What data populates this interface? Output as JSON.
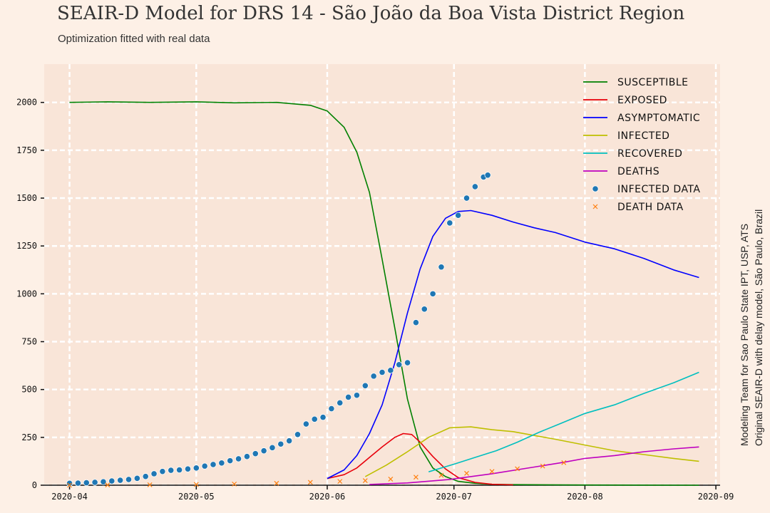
{
  "title": "SEAIR-D Model for DRS 14 - São João da Boa Vista District Region",
  "subtitle": "Optimization fitted with real data",
  "side_note_1": "Modeling Team for Sao Paulo State IPT, USP, ATS",
  "side_note_2": "Original SEAIR-D with delay model, São Paulo, Brazil",
  "colors": {
    "background": "#fdf0e6",
    "plot_area": "#f9e5d8",
    "grid": "#ffffff",
    "susceptible": "#008000",
    "exposed": "#e8000b",
    "asymptomatic": "#0000ff",
    "infected": "#bfbf00",
    "recovered": "#00bfbf",
    "deaths": "#bf00bf",
    "infected_data": "#1f77b4",
    "death_data": "#ff7f0e"
  },
  "chart_data": {
    "type": "line",
    "title": "SEAIR-D Model for DRS 14 - São João da Boa Vista District Region",
    "subtitle": "Optimization fitted with real data",
    "xlim": [
      "2020-03-26",
      "2020-09-02"
    ],
    "ylim": [
      0,
      2200
    ],
    "x_ticks": [
      "2020-04",
      "2020-05",
      "2020-06",
      "2020-07",
      "2020-08",
      "2020-09"
    ],
    "y_ticks": [
      0,
      250,
      500,
      750,
      1000,
      1250,
      1500,
      1750,
      2000
    ],
    "grid": true,
    "legend": "top-right",
    "series": [
      {
        "name": "Susceptible",
        "kind": "line",
        "color": "#008000",
        "x": [
          "2020-04-01",
          "2020-04-10",
          "2020-04-20",
          "2020-05-01",
          "2020-05-10",
          "2020-05-20",
          "2020-05-28",
          "2020-06-01",
          "2020-06-05",
          "2020-06-08",
          "2020-06-11",
          "2020-06-14",
          "2020-06-17",
          "2020-06-20",
          "2020-06-23",
          "2020-06-26",
          "2020-06-29",
          "2020-07-02",
          "2020-07-06",
          "2020-07-10",
          "2020-07-15",
          "2020-08-01",
          "2020-08-28"
        ],
        "y": [
          2000,
          2003,
          2000,
          2003,
          1998,
          2000,
          1985,
          1955,
          1870,
          1740,
          1530,
          1180,
          820,
          450,
          200,
          90,
          45,
          20,
          10,
          5,
          3,
          1,
          0
        ]
      },
      {
        "name": "Exposed",
        "kind": "line",
        "color": "#e8000b",
        "x": [
          "2020-06-01",
          "2020-06-05",
          "2020-06-08",
          "2020-06-11",
          "2020-06-14",
          "2020-06-17",
          "2020-06-19",
          "2020-06-21",
          "2020-06-23",
          "2020-06-26",
          "2020-06-29",
          "2020-07-02",
          "2020-07-06",
          "2020-07-10",
          "2020-07-15"
        ],
        "y": [
          35,
          55,
          90,
          145,
          200,
          250,
          270,
          265,
          225,
          150,
          85,
          40,
          15,
          5,
          2
        ]
      },
      {
        "name": "Asymptomatic",
        "kind": "line",
        "color": "#0000ff",
        "x": [
          "2020-06-01",
          "2020-06-05",
          "2020-06-08",
          "2020-06-11",
          "2020-06-14",
          "2020-06-17",
          "2020-06-20",
          "2020-06-23",
          "2020-06-26",
          "2020-06-29",
          "2020-07-02",
          "2020-07-05",
          "2020-07-10",
          "2020-07-15",
          "2020-07-20",
          "2020-07-25",
          "2020-08-01",
          "2020-08-08",
          "2020-08-15",
          "2020-08-22",
          "2020-08-28"
        ],
        "y": [
          35,
          80,
          155,
          270,
          420,
          640,
          900,
          1130,
          1300,
          1395,
          1430,
          1435,
          1410,
          1375,
          1345,
          1320,
          1270,
          1235,
          1185,
          1125,
          1085
        ]
      },
      {
        "name": "Infected",
        "kind": "line",
        "color": "#bfbf00",
        "x": [
          "2020-06-10",
          "2020-06-15",
          "2020-06-20",
          "2020-06-25",
          "2020-06-30",
          "2020-07-05",
          "2020-07-10",
          "2020-07-15",
          "2020-07-20",
          "2020-07-25",
          "2020-08-01",
          "2020-08-08",
          "2020-08-15",
          "2020-08-22",
          "2020-08-28"
        ],
        "y": [
          45,
          105,
          175,
          250,
          300,
          305,
          290,
          280,
          260,
          240,
          210,
          180,
          160,
          140,
          125
        ]
      },
      {
        "name": "Recovered",
        "kind": "line",
        "color": "#00bfbf",
        "x": [
          "2020-06-25",
          "2020-07-01",
          "2020-07-06",
          "2020-07-11",
          "2020-07-16",
          "2020-07-21",
          "2020-07-26",
          "2020-08-01",
          "2020-08-08",
          "2020-08-15",
          "2020-08-22",
          "2020-08-28"
        ],
        "y": [
          70,
          110,
          145,
          180,
          225,
          275,
          320,
          375,
          420,
          480,
          535,
          590
        ]
      },
      {
        "name": "Deaths",
        "kind": "line",
        "color": "#bf00bf",
        "x": [
          "2020-06-11",
          "2020-06-20",
          "2020-06-30",
          "2020-07-10",
          "2020-07-20",
          "2020-07-27",
          "2020-08-01",
          "2020-08-08",
          "2020-08-15",
          "2020-08-22",
          "2020-08-28"
        ],
        "y": [
          4,
          12,
          30,
          60,
          95,
          120,
          140,
          155,
          175,
          190,
          200
        ]
      },
      {
        "name": "Infected data",
        "kind": "scatter",
        "marker": "circle",
        "color": "#1f77b4",
        "x": [
          "2020-04-01",
          "2020-04-03",
          "2020-04-05",
          "2020-04-07",
          "2020-04-09",
          "2020-04-11",
          "2020-04-13",
          "2020-04-15",
          "2020-04-17",
          "2020-04-19",
          "2020-04-21",
          "2020-04-23",
          "2020-04-25",
          "2020-04-27",
          "2020-04-29",
          "2020-05-01",
          "2020-05-03",
          "2020-05-05",
          "2020-05-07",
          "2020-05-09",
          "2020-05-11",
          "2020-05-13",
          "2020-05-15",
          "2020-05-17",
          "2020-05-19",
          "2020-05-21",
          "2020-05-23",
          "2020-05-25",
          "2020-05-27",
          "2020-05-29",
          "2020-05-31",
          "2020-06-02",
          "2020-06-04",
          "2020-06-06",
          "2020-06-08",
          "2020-06-10",
          "2020-06-12",
          "2020-06-14",
          "2020-06-16",
          "2020-06-18",
          "2020-06-20",
          "2020-06-22",
          "2020-06-24",
          "2020-06-26",
          "2020-06-28",
          "2020-06-30",
          "2020-07-02",
          "2020-07-04",
          "2020-07-06",
          "2020-07-08",
          "2020-07-09"
        ],
        "y": [
          10,
          11,
          13,
          15,
          18,
          22,
          26,
          30,
          36,
          46,
          60,
          72,
          78,
          80,
          85,
          90,
          100,
          108,
          116,
          128,
          138,
          150,
          165,
          180,
          196,
          215,
          232,
          265,
          320,
          345,
          355,
          400,
          430,
          460,
          470,
          520,
          570,
          590,
          600,
          630,
          640,
          850,
          920,
          1000,
          1140,
          1370,
          1410,
          1500,
          1560,
          1610,
          1620
        ]
      },
      {
        "name": "Death data",
        "kind": "scatter",
        "marker": "x",
        "color": "#ff7f0e",
        "x": [
          "2020-04-01",
          "2020-04-10",
          "2020-04-20",
          "2020-05-01",
          "2020-05-10",
          "2020-05-20",
          "2020-05-28",
          "2020-06-04",
          "2020-06-10",
          "2020-06-16",
          "2020-06-22",
          "2020-06-28",
          "2020-07-04",
          "2020-07-10",
          "2020-07-16",
          "2020-07-22",
          "2020-07-27"
        ],
        "y": [
          0,
          1,
          2,
          4,
          6,
          10,
          15,
          20,
          24,
          32,
          42,
          52,
          62,
          72,
          86,
          100,
          118
        ]
      }
    ]
  }
}
